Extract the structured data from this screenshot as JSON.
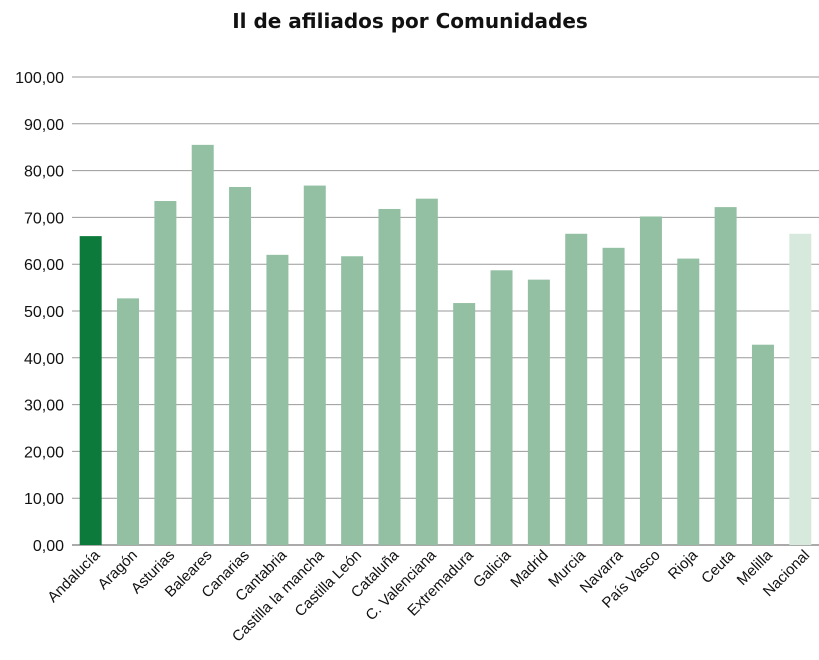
{
  "chart_data": {
    "type": "bar",
    "title": "Il de afiliados por Comunidades",
    "xlabel": "",
    "ylabel": "",
    "ylim": [
      0,
      100
    ],
    "yticks": [
      "0,00",
      "10,00",
      "20,00",
      "30,00",
      "40,00",
      "50,00",
      "60,00",
      "70,00",
      "80,00",
      "90,00",
      "100,00"
    ],
    "grid": true,
    "legend": "none",
    "categories": [
      "Andalucía",
      "Aragón",
      "Asturias",
      "Baleares",
      "Canarias",
      "Cantabria",
      "Castilla la mancha",
      "Castilla León",
      "Cataluña",
      "C. Valenciana",
      "Extremadura",
      "Galicia",
      "Madrid",
      "Murcia",
      "Navarra",
      "País Vasco",
      "Rioja",
      "Ceuta",
      "Melilla",
      "Nacional"
    ],
    "values": [
      66.0,
      52.7,
      73.5,
      85.5,
      76.5,
      62.0,
      76.8,
      61.7,
      71.8,
      74.0,
      51.7,
      58.7,
      56.7,
      66.5,
      63.5,
      70.2,
      61.2,
      72.2,
      42.8,
      66.5
    ],
    "colors": {
      "highlight": "#0b7a3b",
      "default": "#93c0a3",
      "national": "#d7e8dc"
    },
    "bar_color_keys": [
      "highlight",
      "default",
      "default",
      "default",
      "default",
      "default",
      "default",
      "default",
      "default",
      "default",
      "default",
      "default",
      "default",
      "default",
      "default",
      "default",
      "default",
      "default",
      "default",
      "national"
    ]
  }
}
